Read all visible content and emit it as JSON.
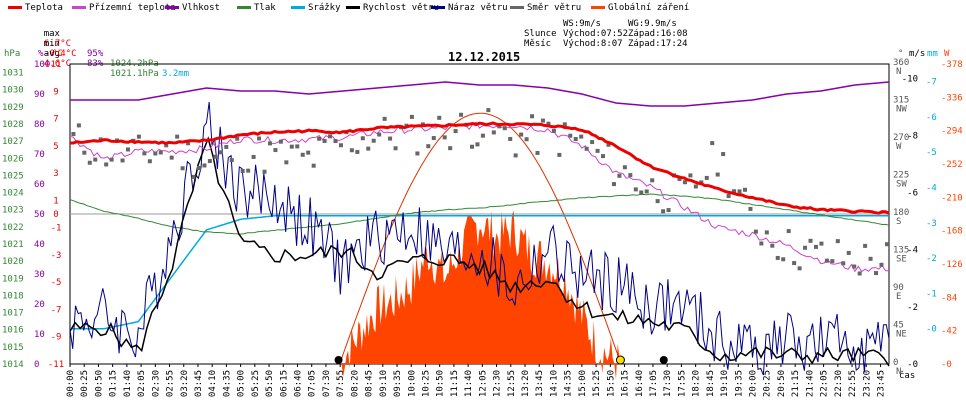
{
  "legend": [
    {
      "label": "Teplota",
      "color": "#ee0000"
    },
    {
      "label": "Přízemní teplota",
      "color": "#cc44cc"
    },
    {
      "label": "Vlhkost",
      "color": "#8800aa"
    },
    {
      "label": "Tlak",
      "color": "#338833"
    },
    {
      "label": "Srážky",
      "color": "#00aadd"
    },
    {
      "label": "Rychlost větru",
      "color": "#000000"
    },
    {
      "label": "Náraz větru",
      "color": "#000088"
    },
    {
      "label": "Směr větru",
      "color": "#666666"
    },
    {
      "label": "Globální záření",
      "color": "#ff4400"
    }
  ],
  "stats": {
    "max": {
      "label": "max",
      "temp": "6.7°C",
      "hum": "95%",
      "press": "1024.2hPa",
      "rain": "3.2mm"
    },
    "min": {
      "label": "min",
      "temp": "-0.4°C",
      "hum": "83%",
      "press": "1021.1hPa"
    },
    "avg": {
      "label": "avg",
      "temp": "4.6°C"
    }
  },
  "wind_info": {
    "ws": "WS:9m/s",
    "wg": "WG:9.9m/s"
  },
  "sun": {
    "label": "Slunce",
    "rise": "Východ:07:52",
    "set": "Západ:16:08"
  },
  "moon": {
    "label": "Měsíc",
    "rise": "Východ:8:07",
    "set": "Západ:17:24"
  },
  "title": "12.12.2015",
  "colors": {
    "temp": "#ee0000",
    "ground": "#cc44cc",
    "hum": "#8800aa",
    "press": "#338833",
    "rain": "#00aadd",
    "wind": "#000000",
    "gust": "#000088",
    "dir": "#666666",
    "solar": "#ff4400"
  },
  "axes": {
    "press_unit": "hPa",
    "hum_unit": "%",
    "temp_unit": "°C",
    "dir_unit": "°",
    "wind_unit": "m/s",
    "rain_unit": "mm",
    "solar_unit": "W",
    "xlabel": "čas",
    "press_ticks": [
      "1031",
      "1030",
      "1029",
      "1028",
      "1027",
      "1026",
      "1025",
      "1024",
      "1023",
      "1022",
      "1021",
      "1020",
      "1019",
      "1018",
      "1017",
      "1016",
      "1015",
      "1014"
    ],
    "hum_ticks": [
      "100",
      "90",
      "80",
      "70",
      "60",
      "50",
      "40",
      "30",
      "20",
      "10",
      "0"
    ],
    "temp_ticks": [
      "11",
      "9",
      "7",
      "5",
      "3",
      "1",
      "0",
      "-1",
      "-3",
      "-5",
      "-7",
      "-9",
      "-11"
    ],
    "dir_ticks": [
      "360 N",
      "315 NW",
      "270 W",
      "225 SW",
      "180 S",
      "135 SE",
      "90 E",
      "45 NE",
      "0 N"
    ],
    "wind_ticks": [
      "10",
      "8",
      "6",
      "4",
      "2",
      "0"
    ],
    "rain_ticks": [
      "7",
      "6",
      "5",
      "4",
      "3",
      "2",
      "1",
      "0"
    ],
    "solar_ticks": [
      "378",
      "336",
      "294",
      "252",
      "210",
      "168",
      "126",
      "84",
      "42",
      "0"
    ],
    "time_ticks": [
      "00:00",
      "00:25",
      "00:50",
      "01:15",
      "01:40",
      "02:05",
      "02:30",
      "02:55",
      "03:20",
      "03:45",
      "04:10",
      "04:35",
      "05:00",
      "05:25",
      "05:50",
      "06:15",
      "06:40",
      "07:05",
      "07:30",
      "07:55",
      "08:20",
      "08:45",
      "09:10",
      "09:35",
      "10:00",
      "10:25",
      "10:50",
      "11:15",
      "11:40",
      "12:05",
      "12:30",
      "12:55",
      "13:20",
      "13:45",
      "14:10",
      "14:35",
      "15:00",
      "15:25",
      "15:50",
      "16:15",
      "16:40",
      "17:05",
      "17:30",
      "17:55",
      "18:20",
      "18:45",
      "19:10",
      "19:35",
      "20:00",
      "20:25",
      "20:50",
      "21:15",
      "21:40",
      "22:05",
      "22:30",
      "22:55",
      "23:20",
      "23:45"
    ]
  },
  "chart_data": {
    "type": "line",
    "title": "12.12.2015",
    "xlabel": "čas",
    "x_range_hours": [
      0,
      24
    ],
    "series": [
      {
        "name": "Teplota",
        "unit": "°C",
        "x": [
          0,
          1,
          2,
          3,
          4,
          5,
          6,
          7,
          8,
          9,
          10,
          11,
          12,
          13,
          14,
          15,
          16,
          17,
          18,
          19,
          20,
          21,
          22,
          23,
          24
        ],
        "values": [
          5.2,
          5.4,
          5.3,
          5.2,
          5.4,
          5.8,
          6.0,
          6.1,
          6.0,
          6.3,
          6.4,
          6.5,
          6.6,
          6.6,
          6.5,
          6.2,
          5.0,
          3.5,
          2.6,
          1.8,
          1.2,
          0.6,
          0.3,
          0.2,
          0.1
        ]
      },
      {
        "name": "Přízemní teplota",
        "unit": "°C",
        "x": [
          0,
          1,
          2,
          3,
          4,
          5,
          6,
          7,
          8,
          9,
          10,
          11,
          12,
          13,
          14,
          15,
          16,
          17,
          18,
          19,
          20,
          21,
          22,
          23,
          24
        ],
        "values": [
          5.7,
          4.0,
          4.6,
          4.6,
          4.8,
          5.5,
          5.4,
          5.5,
          5.6,
          6.0,
          6.2,
          6.3,
          6.5,
          6.5,
          6.2,
          5.0,
          3.0,
          2.0,
          0.5,
          -1.0,
          -1.5,
          -2.3,
          -3.4,
          -4.0,
          -4.0
        ]
      },
      {
        "name": "Vlhkost",
        "unit": "%",
        "x": [
          0,
          1,
          2,
          3,
          4,
          5,
          6,
          7,
          8,
          9,
          10,
          11,
          12,
          13,
          14,
          15,
          16,
          17,
          18,
          19,
          20,
          21,
          22,
          23,
          24
        ],
        "values": [
          88,
          88,
          88,
          90,
          92,
          91,
          91,
          90,
          91,
          92,
          93,
          94,
          93,
          93,
          92,
          90,
          87,
          86,
          86,
          87,
          88,
          90,
          91,
          93,
          94
        ]
      },
      {
        "name": "Tlak",
        "unit": "hPa",
        "x": [
          0,
          1,
          2,
          3,
          4,
          5,
          6,
          7,
          8,
          9,
          10,
          11,
          12,
          13,
          14,
          15,
          16,
          17,
          18,
          19,
          20,
          21,
          22,
          23,
          24
        ],
        "values": [
          1023.6,
          1022.9,
          1022.5,
          1022.0,
          1021.7,
          1021.6,
          1021.8,
          1022.0,
          1022.2,
          1022.5,
          1022.8,
          1023.0,
          1023.1,
          1023.3,
          1023.5,
          1023.7,
          1023.8,
          1023.9,
          1023.8,
          1023.6,
          1023.3,
          1023.0,
          1022.7,
          1022.4,
          1022.1
        ]
      },
      {
        "name": "Srážky",
        "unit": "mm",
        "x": [
          0,
          1,
          2,
          3,
          4,
          5,
          6,
          7,
          8,
          9,
          10,
          11,
          12,
          13,
          14,
          15,
          16,
          17,
          18,
          19,
          20,
          21,
          22,
          23,
          24
        ],
        "values": [
          0,
          0,
          0.2,
          1.5,
          2.8,
          3.1,
          3.2,
          3.2,
          3.2,
          3.2,
          3.2,
          3.2,
          3.2,
          3.2,
          3.2,
          3.2,
          3.2,
          3.2,
          3.2,
          3.2,
          3.2,
          3.2,
          3.2,
          3.2,
          3.2
        ]
      },
      {
        "name": "Rychlost větru",
        "unit": "m/s",
        "x": [
          0,
          1,
          2,
          3,
          4,
          5,
          6,
          7,
          8,
          9,
          10,
          11,
          12,
          13,
          14,
          15,
          16,
          17,
          18,
          19,
          20,
          21,
          22,
          23,
          24
        ],
        "values": [
          1.2,
          1.3,
          0.4,
          3.5,
          7.8,
          4.2,
          3.8,
          3.8,
          4.0,
          3.2,
          3.6,
          3.7,
          3.4,
          2.7,
          3.0,
          2.0,
          1.6,
          1.5,
          1.2,
          0.3,
          0.4,
          0.3,
          0.3,
          0.3,
          0.2
        ]
      },
      {
        "name": "Náraz větru",
        "unit": "m/s",
        "x": [
          0,
          1,
          2,
          3,
          4,
          5,
          6,
          7,
          8,
          9,
          10,
          11,
          12,
          13,
          14,
          15,
          16,
          17,
          18,
          19,
          20,
          21,
          22,
          23,
          24
        ],
        "values": [
          1.5,
          1.7,
          1.0,
          4.6,
          8.4,
          6.1,
          5.8,
          4.8,
          3.4,
          4.5,
          4.8,
          3.8,
          3.9,
          2.5,
          4.0,
          3.0,
          2.8,
          2.0,
          2.0,
          0.8,
          0.6,
          0.8,
          0.6,
          0.8,
          0.4
        ]
      },
      {
        "name": "Směr větru",
        "unit": "°",
        "x": [
          0,
          1,
          2,
          3,
          4,
          5,
          6,
          7,
          8,
          9,
          10,
          11,
          12,
          13,
          14,
          15,
          16,
          17,
          18,
          19,
          20,
          21,
          22,
          23,
          24
        ],
        "values": [
          270,
          255,
          250,
          260,
          240,
          255,
          250,
          245,
          265,
          275,
          275,
          280,
          285,
          270,
          275,
          265,
          235,
          210,
          200,
          250,
          170,
          140,
          130,
          125,
          125
        ]
      },
      {
        "name": "Globální záření",
        "unit": "W",
        "x": [
          7.9,
          8.5,
          9,
          9.5,
          10,
          10.5,
          11,
          11.5,
          12,
          12.5,
          13,
          13.5,
          14,
          14.5,
          15,
          15.5,
          16.1
        ],
        "values": [
          0,
          40,
          70,
          80,
          100,
          140,
          110,
          150,
          180,
          160,
          170,
          140,
          130,
          110,
          60,
          20,
          0
        ]
      }
    ],
    "theoretical_solar_max": 316
  }
}
